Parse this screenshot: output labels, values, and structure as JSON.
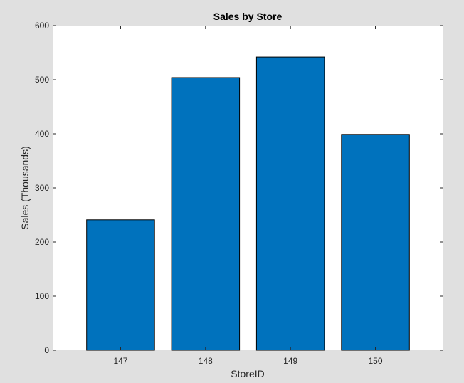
{
  "chart_data": {
    "type": "bar",
    "title": "Sales by Store",
    "xlabel": "StoreID",
    "ylabel": "Sales (Thousands)",
    "categories": [
      "147",
      "148",
      "149",
      "150"
    ],
    "values": [
      241,
      504,
      542,
      399
    ],
    "ylim": [
      0,
      600
    ],
    "yticks": [
      0,
      100,
      200,
      300,
      400,
      500,
      600
    ],
    "grid": false,
    "bar_color": "#0072bd",
    "bar_edge_color": "#000000",
    "background_color": "#e0e0e0",
    "axes_color": "#ffffff"
  }
}
